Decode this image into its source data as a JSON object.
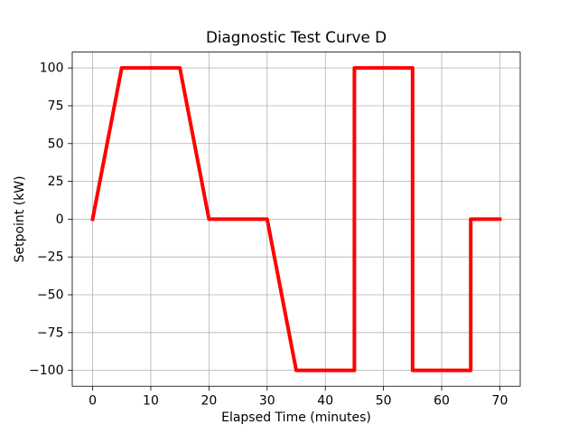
{
  "figure": {
    "background": "#ffffff"
  },
  "chart_data": {
    "type": "line",
    "title": "Diagnostic Test Curve D",
    "xlabel": "Elapsed Time (minutes)",
    "ylabel": "Setpoint (kW)",
    "grid": true,
    "grid_color": "#b0b0b0",
    "spine_color": "#000000",
    "legend": "none",
    "xlim": [
      -3.5,
      73.5
    ],
    "ylim": [
      -110.5,
      110.5
    ],
    "xticks": [
      0,
      10,
      20,
      30,
      40,
      50,
      60,
      70
    ],
    "yticks": [
      100,
      75,
      50,
      25,
      0,
      -25,
      -50,
      -75,
      -100
    ],
    "xtick_labels": [
      "0",
      "10",
      "20",
      "30",
      "40",
      "50",
      "60",
      "70"
    ],
    "ytick_labels": [
      "100",
      "75",
      "50",
      "25",
      "0",
      "−25",
      "−50",
      "−75",
      "−100"
    ],
    "series": [
      {
        "name": "setpoint-curve",
        "color": "#ff0000",
        "linewidth": 4,
        "points": [
          [
            0,
            0
          ],
          [
            5,
            100
          ],
          [
            15,
            100
          ],
          [
            20,
            0
          ],
          [
            30,
            0
          ],
          [
            35,
            -100
          ],
          [
            45,
            -100
          ],
          [
            45,
            100
          ],
          [
            55,
            100
          ],
          [
            55,
            -100
          ],
          [
            65,
            -100
          ],
          [
            65,
            0
          ],
          [
            70,
            0
          ]
        ]
      }
    ]
  }
}
